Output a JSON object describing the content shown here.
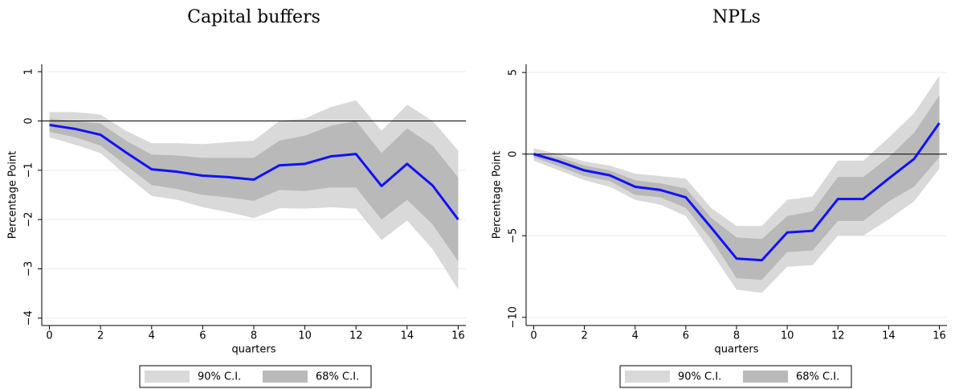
{
  "chart_data": [
    {
      "type": "line",
      "title": "Capital buffers",
      "xlabel": "quarters",
      "ylabel": "Percentage Point",
      "x": [
        0,
        1,
        2,
        3,
        4,
        5,
        6,
        7,
        8,
        9,
        10,
        11,
        12,
        13,
        14,
        15,
        16
      ],
      "xlim": [
        -0.3,
        16.3
      ],
      "xticks": [
        0,
        2,
        4,
        6,
        8,
        10,
        12,
        14,
        16
      ],
      "ylim": [
        -4.15,
        1.15
      ],
      "yticks": [
        {
          "value": -4,
          "label": "−4"
        },
        {
          "value": -3,
          "label": "−3"
        },
        {
          "value": -2,
          "label": "−2"
        },
        {
          "value": -1,
          "label": "−1"
        },
        0,
        1
      ],
      "grid": true,
      "yline": 0,
      "bands": [
        {
          "name": "90% C.I.",
          "color": "#d9d9d9",
          "upper": [
            0.18,
            0.18,
            0.13,
            -0.2,
            -0.45,
            -0.45,
            -0.47,
            -0.43,
            -0.4,
            0.0,
            0.05,
            0.28,
            0.42,
            -0.2,
            0.33,
            0.0,
            -0.6
          ],
          "lower": [
            -0.33,
            -0.48,
            -0.65,
            -1.1,
            -1.52,
            -1.6,
            -1.75,
            -1.85,
            -1.97,
            -1.77,
            -1.78,
            -1.75,
            -1.78,
            -2.42,
            -2.02,
            -2.6,
            -3.42
          ]
        },
        {
          "name": "68% C.I.",
          "color": "#b9b9b9",
          "upper": [
            0.05,
            0.0,
            -0.05,
            -0.4,
            -0.68,
            -0.7,
            -0.75,
            -0.75,
            -0.75,
            -0.4,
            -0.3,
            -0.1,
            0.0,
            -0.65,
            -0.15,
            -0.5,
            -1.15
          ],
          "lower": [
            -0.22,
            -0.33,
            -0.5,
            -0.9,
            -1.3,
            -1.38,
            -1.5,
            -1.55,
            -1.62,
            -1.4,
            -1.42,
            -1.35,
            -1.35,
            -2.0,
            -1.6,
            -2.1,
            -2.85
          ]
        }
      ],
      "series": [
        {
          "color": "#1010ff",
          "values": [
            -0.08,
            -0.16,
            -0.28,
            -0.64,
            -0.98,
            -1.03,
            -1.11,
            -1.14,
            -1.19,
            -0.9,
            -0.87,
            -0.72,
            -0.67,
            -1.32,
            -0.87,
            -1.31,
            -2.0
          ]
        }
      ]
    },
    {
      "type": "line",
      "title": "NPLs",
      "xlabel": "quarters",
      "ylabel": "Percentage Point",
      "x": [
        0,
        1,
        2,
        3,
        4,
        5,
        6,
        7,
        8,
        9,
        10,
        11,
        12,
        13,
        14,
        15,
        16
      ],
      "xlim": [
        -0.3,
        16.3
      ],
      "xticks": [
        0,
        2,
        4,
        6,
        8,
        10,
        12,
        14,
        16
      ],
      "ylim": [
        -10.5,
        5.5
      ],
      "yticks": [
        {
          "value": -10,
          "label": "−10"
        },
        {
          "value": -5,
          "label": "−5"
        },
        0,
        5
      ],
      "grid": true,
      "yline": 0,
      "bands": [
        {
          "name": "90% C.I.",
          "color": "#d9d9d9",
          "upper": [
            0.35,
            0.0,
            -0.45,
            -0.7,
            -1.2,
            -1.35,
            -1.5,
            -3.3,
            -4.4,
            -4.4,
            -2.8,
            -2.6,
            -0.4,
            -0.4,
            1.0,
            2.5,
            4.8
          ],
          "lower": [
            -0.4,
            -1.0,
            -1.6,
            -2.0,
            -2.8,
            -3.1,
            -3.8,
            -6.0,
            -8.3,
            -8.5,
            -6.9,
            -6.8,
            -5.0,
            -5.0,
            -4.0,
            -2.9,
            -0.9
          ]
        },
        {
          "name": "68% C.I.",
          "color": "#b9b9b9",
          "upper": [
            0.1,
            -0.2,
            -0.7,
            -1.0,
            -1.6,
            -1.8,
            -2.1,
            -3.9,
            -5.1,
            -5.2,
            -3.8,
            -3.5,
            -1.4,
            -1.4,
            -0.2,
            1.3,
            3.6
          ],
          "lower": [
            -0.2,
            -0.75,
            -1.35,
            -1.65,
            -2.5,
            -2.65,
            -3.3,
            -5.2,
            -7.6,
            -7.7,
            -6.0,
            -5.9,
            -4.1,
            -4.1,
            -2.9,
            -2.0,
            -0.2
          ]
        }
      ],
      "series": [
        {
          "color": "#1010ff",
          "values": [
            0.0,
            -0.45,
            -1.0,
            -1.3,
            -2.0,
            -2.2,
            -2.65,
            -4.5,
            -6.4,
            -6.5,
            -4.8,
            -4.7,
            -2.75,
            -2.75,
            -1.5,
            -0.3,
            1.9
          ]
        }
      ]
    }
  ]
}
